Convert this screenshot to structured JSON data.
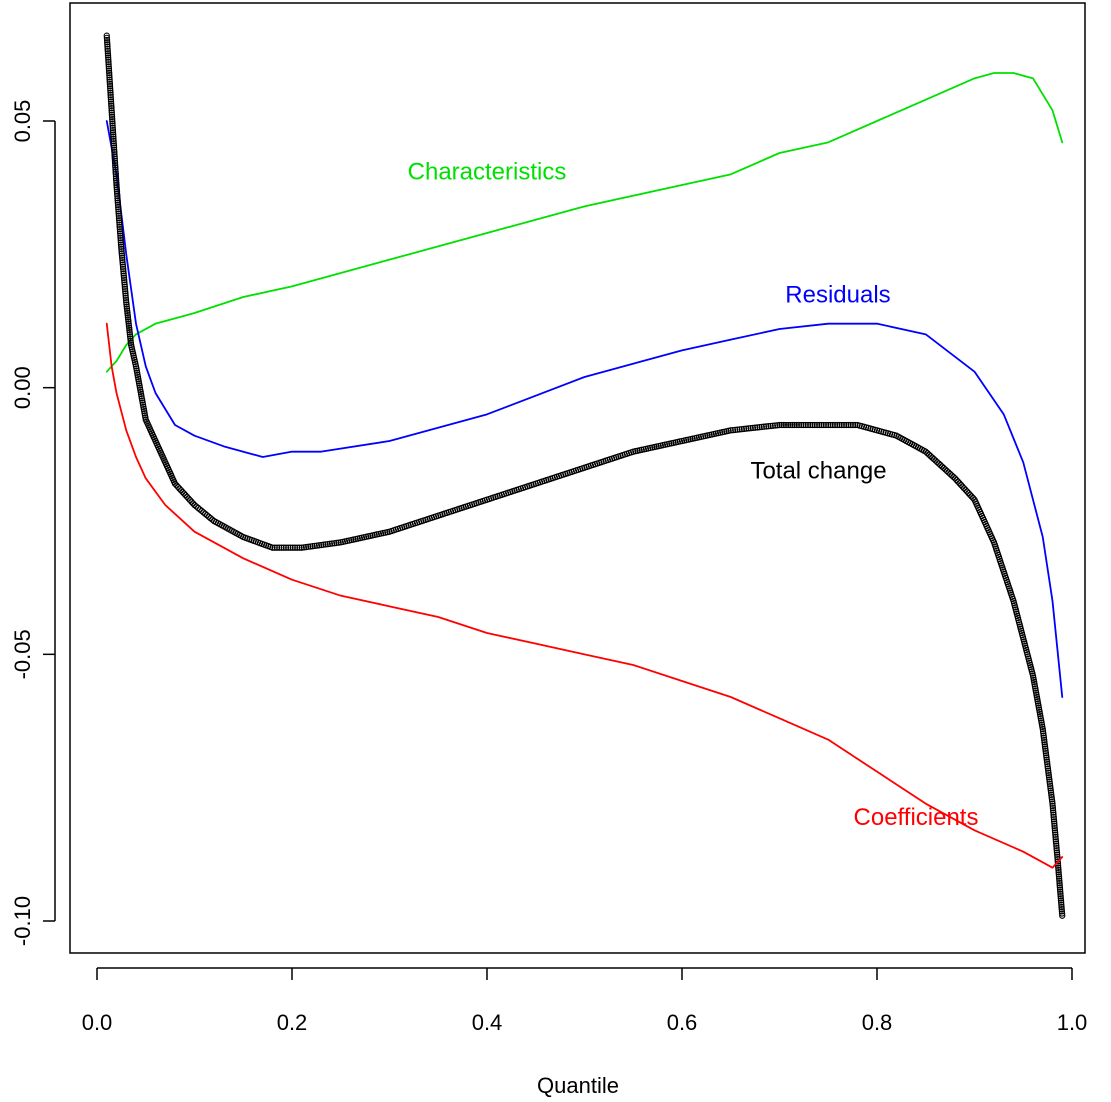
{
  "chart_data": {
    "type": "line",
    "title": "",
    "xlabel": "Quantile",
    "ylabel": "",
    "xlim": [
      0.0,
      1.0
    ],
    "ylim": [
      -0.1,
      0.065
    ],
    "grid": false,
    "x_ticks": [
      {
        "value": 0.0,
        "label": "0.0"
      },
      {
        "value": 0.2,
        "label": "0.2"
      },
      {
        "value": 0.4,
        "label": "0.4"
      },
      {
        "value": 0.6,
        "label": "0.6"
      },
      {
        "value": 0.8,
        "label": "0.8"
      },
      {
        "value": 1.0,
        "label": "1.0"
      }
    ],
    "y_ticks": [
      {
        "value": -0.1,
        "label": "-0.10"
      },
      {
        "value": -0.05,
        "label": "-0.05"
      },
      {
        "value": 0.0,
        "label": "0.00"
      },
      {
        "value": 0.05,
        "label": "0.05"
      }
    ],
    "series": [
      {
        "name": "Characteristics",
        "color": "#00e000",
        "style": "line",
        "label_anchor": [
          0.4,
          0.039
        ],
        "x": [
          0.01,
          0.02,
          0.03,
          0.04,
          0.06,
          0.08,
          0.1,
          0.15,
          0.2,
          0.3,
          0.4,
          0.5,
          0.6,
          0.65,
          0.7,
          0.75,
          0.8,
          0.85,
          0.9,
          0.92,
          0.94,
          0.96,
          0.98,
          0.99
        ],
        "y": [
          0.003,
          0.005,
          0.008,
          0.01,
          0.012,
          0.013,
          0.014,
          0.017,
          0.019,
          0.024,
          0.029,
          0.034,
          0.038,
          0.04,
          0.044,
          0.046,
          0.05,
          0.054,
          0.058,
          0.059,
          0.059,
          0.058,
          0.052,
          0.046
        ]
      },
      {
        "name": "Residuals",
        "color": "#0000ff",
        "style": "line",
        "label_anchor": [
          0.76,
          0.016
        ],
        "x": [
          0.01,
          0.02,
          0.03,
          0.04,
          0.05,
          0.06,
          0.08,
          0.1,
          0.13,
          0.17,
          0.2,
          0.23,
          0.3,
          0.4,
          0.5,
          0.6,
          0.65,
          0.7,
          0.75,
          0.8,
          0.85,
          0.9,
          0.93,
          0.95,
          0.97,
          0.98,
          0.99
        ],
        "y": [
          0.05,
          0.04,
          0.025,
          0.012,
          0.004,
          -0.001,
          -0.007,
          -0.009,
          -0.011,
          -0.013,
          -0.012,
          -0.012,
          -0.01,
          -0.005,
          0.002,
          0.007,
          0.009,
          0.011,
          0.012,
          0.012,
          0.01,
          0.003,
          -0.005,
          -0.014,
          -0.028,
          -0.04,
          -0.058
        ]
      },
      {
        "name": "Total change",
        "color": "#000000",
        "style": "points",
        "label_anchor": [
          0.74,
          -0.017
        ],
        "x": [
          0.01,
          0.015,
          0.02,
          0.025,
          0.03,
          0.035,
          0.04,
          0.05,
          0.06,
          0.07,
          0.08,
          0.1,
          0.12,
          0.15,
          0.18,
          0.21,
          0.25,
          0.3,
          0.35,
          0.4,
          0.45,
          0.5,
          0.55,
          0.6,
          0.65,
          0.7,
          0.72,
          0.75,
          0.78,
          0.8,
          0.82,
          0.85,
          0.88,
          0.9,
          0.92,
          0.94,
          0.96,
          0.97,
          0.98,
          0.985,
          0.99
        ],
        "y": [
          0.066,
          0.052,
          0.038,
          0.026,
          0.016,
          0.008,
          0.004,
          -0.006,
          -0.01,
          -0.014,
          -0.018,
          -0.022,
          -0.025,
          -0.028,
          -0.03,
          -0.03,
          -0.029,
          -0.027,
          -0.024,
          -0.021,
          -0.018,
          -0.015,
          -0.012,
          -0.01,
          -0.008,
          -0.007,
          -0.007,
          -0.007,
          -0.007,
          -0.008,
          -0.009,
          -0.012,
          -0.017,
          -0.021,
          -0.029,
          -0.04,
          -0.054,
          -0.064,
          -0.078,
          -0.088,
          -0.099
        ]
      },
      {
        "name": "Coefficients",
        "color": "#ff0000",
        "style": "line",
        "label_anchor": [
          0.84,
          -0.082
        ],
        "x": [
          0.01,
          0.015,
          0.02,
          0.03,
          0.04,
          0.05,
          0.07,
          0.1,
          0.15,
          0.2,
          0.25,
          0.3,
          0.35,
          0.4,
          0.45,
          0.5,
          0.55,
          0.6,
          0.65,
          0.7,
          0.75,
          0.8,
          0.85,
          0.9,
          0.95,
          0.98,
          0.99
        ],
        "y": [
          0.012,
          0.004,
          -0.001,
          -0.008,
          -0.013,
          -0.017,
          -0.022,
          -0.027,
          -0.032,
          -0.036,
          -0.039,
          -0.041,
          -0.043,
          -0.046,
          -0.048,
          -0.05,
          -0.052,
          -0.055,
          -0.058,
          -0.062,
          -0.066,
          -0.072,
          -0.078,
          -0.083,
          -0.087,
          -0.09,
          -0.088
        ]
      }
    ]
  }
}
